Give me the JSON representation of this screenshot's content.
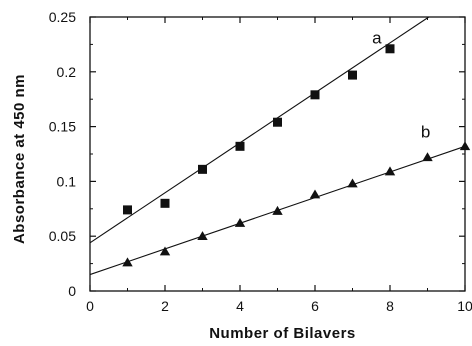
{
  "chart_data": {
    "type": "scatter",
    "title": "",
    "xlabel": "Number of Bilavers",
    "ylabel": "Absorbance at 450 nm",
    "xlim": [
      0,
      10
    ],
    "ylim": [
      0,
      0.25
    ],
    "x_ticks": [
      "0",
      "2",
      "4",
      "6",
      "8",
      "10"
    ],
    "y_ticks": [
      "0",
      "0.05",
      "0.1",
      "0.15",
      "0.2",
      "0.25"
    ],
    "grid": false,
    "series": [
      {
        "name": "a",
        "marker": "square",
        "x": [
          1,
          2,
          3,
          4,
          5,
          6,
          7,
          8
        ],
        "y": [
          0.074,
          0.08,
          0.111,
          0.132,
          0.154,
          0.179,
          0.197,
          0.221
        ],
        "fit": {
          "intercept": 0.044,
          "slope": 0.0228
        }
      },
      {
        "name": "b",
        "marker": "triangle",
        "x": [
          1,
          2,
          3,
          4,
          5,
          6,
          7,
          8,
          9,
          10
        ],
        "y": [
          0.026,
          0.036,
          0.05,
          0.062,
          0.073,
          0.088,
          0.098,
          0.109,
          0.122,
          0.132
        ],
        "fit": {
          "intercept": 0.015,
          "slope": 0.0117
        }
      }
    ]
  }
}
